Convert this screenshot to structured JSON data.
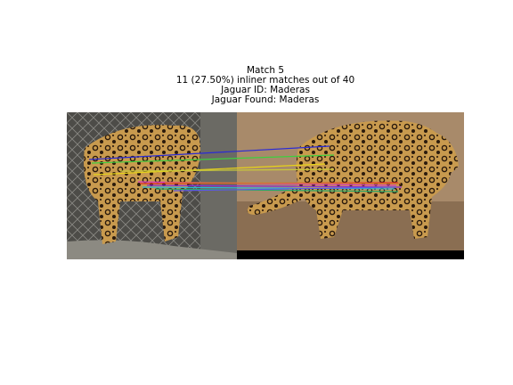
{
  "figure": {
    "title_lines": [
      "Match 5",
      "11 (27.50%) inliner matches out of 40",
      "Jaguar ID: Maderas",
      "Jaguar Found: Maderas"
    ]
  },
  "images": {
    "left": {
      "subject": "jaguar",
      "description_icon": "jaguar-photo-left"
    },
    "right": {
      "subject": "jaguar",
      "description_icon": "jaguar-photo-right"
    }
  },
  "match_line_colors": [
    "#2a2ad6",
    "#3ecf3e",
    "#e6d21a",
    "#c9c93a",
    "#d63ac0",
    "#e02a2a",
    "#2ab8d6",
    "#8a2ad6",
    "#2aa86a",
    "#d67a2a",
    "#5a5ae6"
  ]
}
